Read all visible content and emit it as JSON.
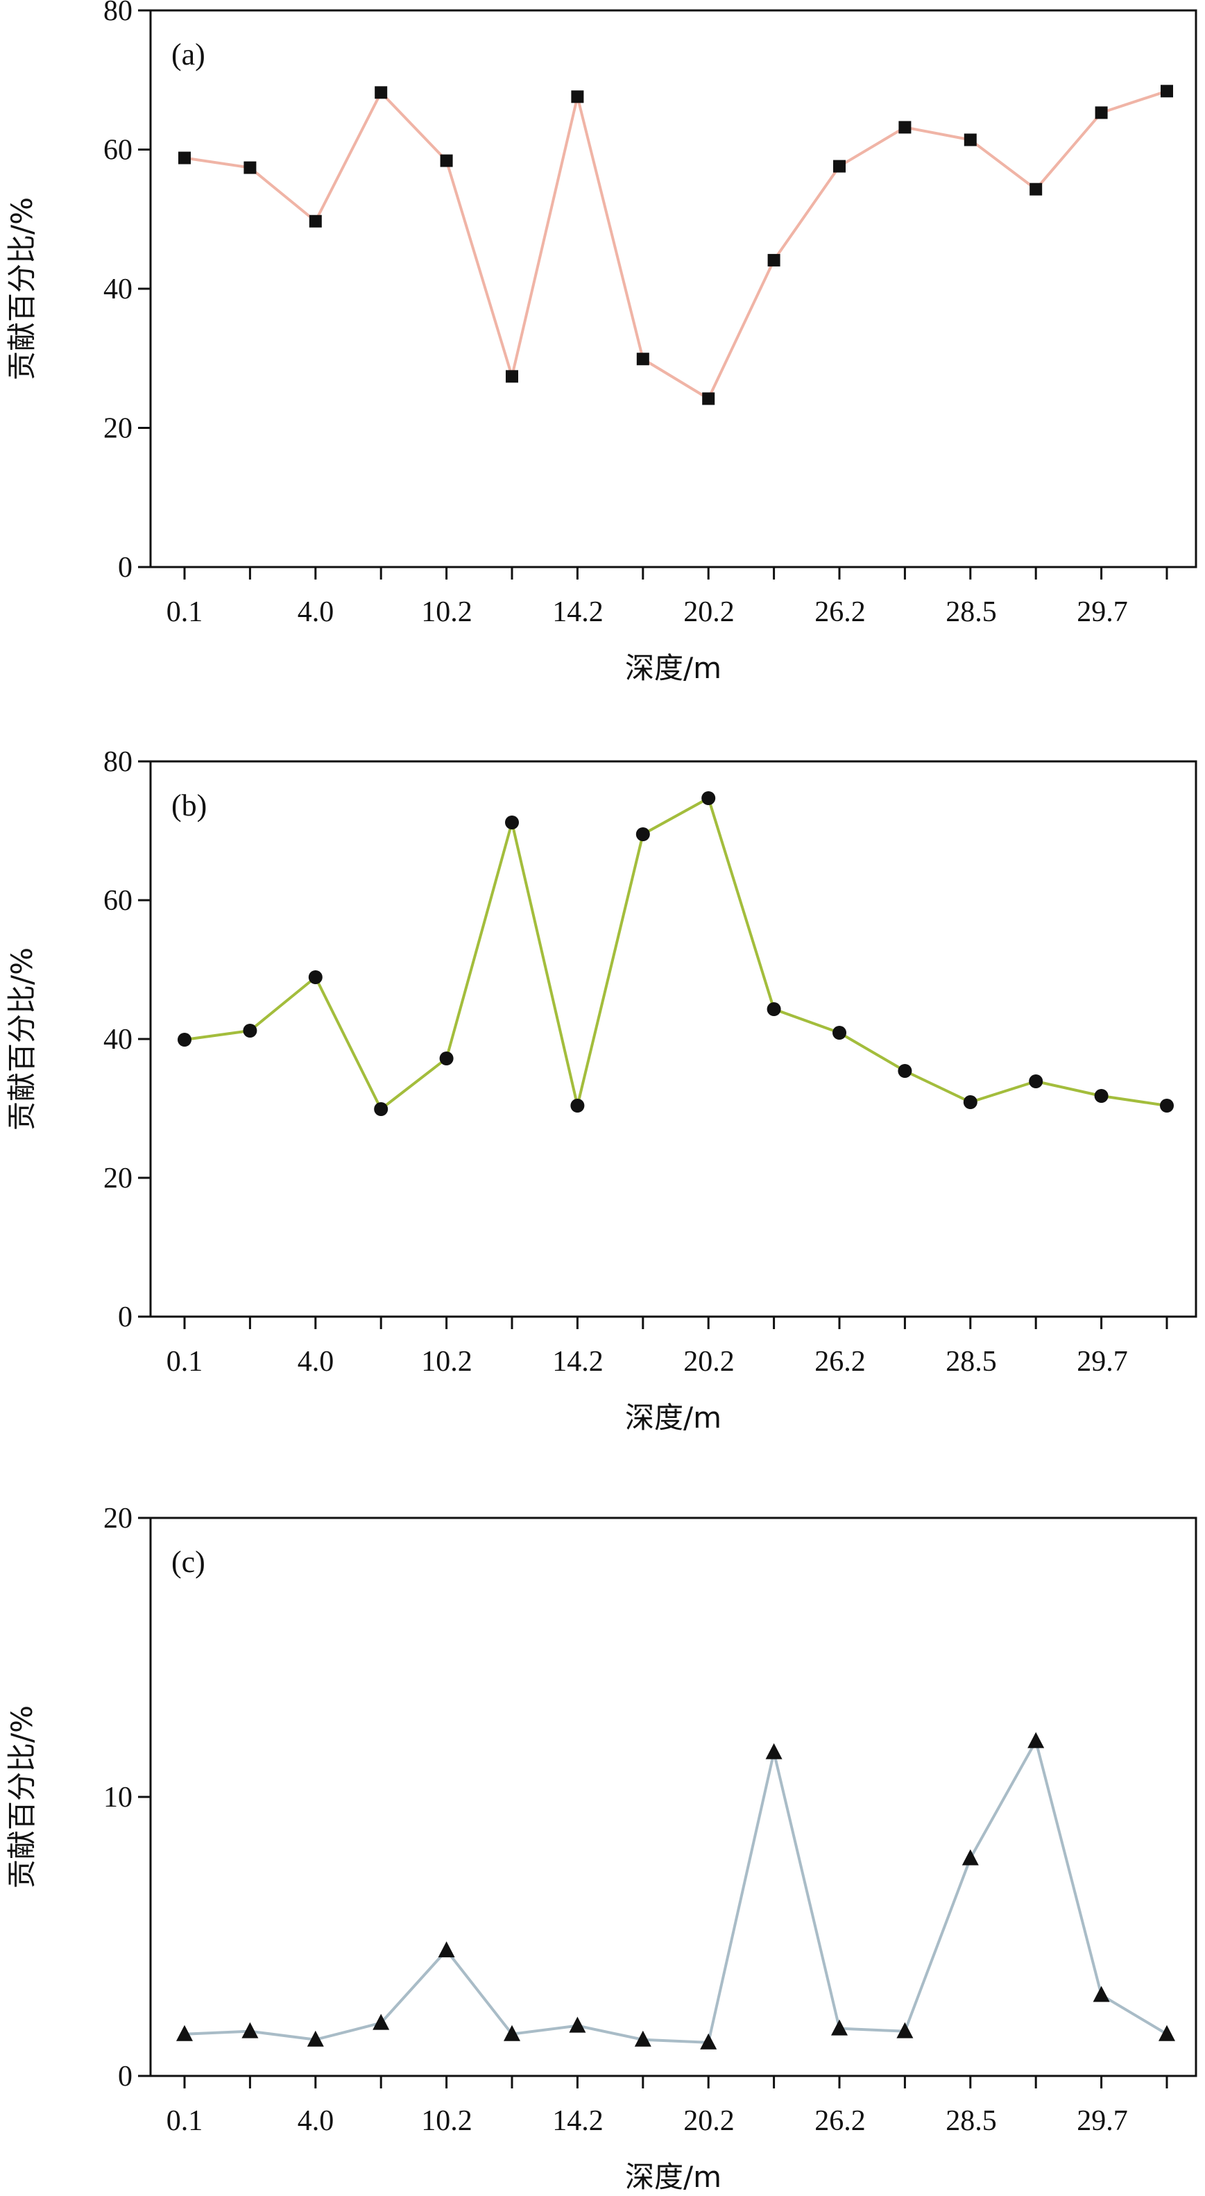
{
  "chart_data": [
    {
      "type": "line",
      "panel_label": "(a)",
      "xlabel": "深度/m",
      "ylabel": "贡献百分比/%",
      "ylim": [
        0,
        80
      ],
      "yticks": [
        0,
        20,
        40,
        60,
        80
      ],
      "xtick_labels": [
        "0.1",
        "4.0",
        "10.2",
        "14.2",
        "20.2",
        "26.2",
        "28.5",
        "29.7"
      ],
      "grid": false,
      "marker": "square",
      "line_color": "#f0b4a6",
      "values": [
        58.8,
        57.4,
        49.7,
        68.2,
        58.4,
        27.4,
        67.6,
        29.9,
        24.2,
        44.1,
        57.6,
        63.2,
        61.4,
        54.3,
        65.3,
        68.4
      ]
    },
    {
      "type": "line",
      "panel_label": "(b)",
      "xlabel": "深度/m",
      "ylabel": "贡献百分比/%",
      "ylim": [
        0,
        80
      ],
      "yticks": [
        0,
        20,
        40,
        60,
        80
      ],
      "xtick_labels": [
        "0.1",
        "4.0",
        "10.2",
        "14.2",
        "20.2",
        "26.2",
        "28.5",
        "29.7"
      ],
      "grid": false,
      "marker": "circle",
      "line_color": "#a3bd3c",
      "values": [
        39.9,
        41.2,
        48.9,
        29.9,
        37.2,
        71.2,
        30.4,
        69.5,
        74.7,
        44.3,
        40.9,
        35.4,
        30.9,
        33.9,
        31.8,
        30.4
      ]
    },
    {
      "type": "line",
      "panel_label": "(c)",
      "xlabel": "深度/m",
      "ylabel": "贡献百分比/%",
      "ylim": [
        0,
        20
      ],
      "yticks": [
        0,
        10,
        20
      ],
      "xtick_labels": [
        "0.1",
        "4.0",
        "10.2",
        "14.2",
        "20.2",
        "26.2",
        "28.5",
        "29.7"
      ],
      "grid": false,
      "marker": "triangle",
      "line_color": "#a9bcc7",
      "values": [
        1.5,
        1.6,
        1.3,
        1.9,
        4.5,
        1.5,
        1.8,
        1.3,
        1.2,
        11.6,
        1.7,
        1.6,
        7.8,
        12.0,
        2.9,
        1.5
      ]
    }
  ]
}
